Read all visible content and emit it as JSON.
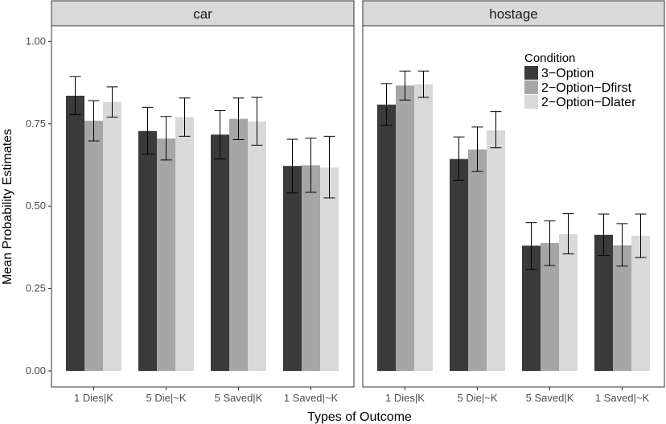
{
  "chart_data": {
    "type": "bar",
    "ylabel": "Mean Probability Estimates",
    "xlabel": "Types of Outcome",
    "ylim": [
      0,
      1.05
    ],
    "yticks": [
      "0.00",
      "0.25",
      "0.50",
      "0.75",
      "1.00"
    ],
    "grid": false,
    "legend": {
      "title": "Condition",
      "placement": "top-right-inside-panel-2",
      "entries": [
        "3−Option",
        "2−Option−Dfirst",
        "2−Option−Dlater"
      ]
    },
    "colors": [
      "#3a3a3a",
      "#a6a6a6",
      "#d9d9d9"
    ],
    "categories": [
      "1 Dies|K",
      "5 Die|~K",
      "5 Saved|K",
      "1 Saved|~K"
    ],
    "panels": [
      {
        "title": "car",
        "series": [
          {
            "name": "3−Option",
            "values": [
              0.835,
              0.728,
              0.717,
              0.622
            ],
            "err_low": [
              0.778,
              0.658,
              0.643,
              0.54
            ],
            "err_high": [
              0.893,
              0.8,
              0.79,
              0.703
            ]
          },
          {
            "name": "2−Option−Dfirst",
            "values": [
              0.759,
              0.705,
              0.765,
              0.624
            ],
            "err_low": [
              0.698,
              0.64,
              0.702,
              0.542
            ],
            "err_high": [
              0.82,
              0.772,
              0.828,
              0.706
            ]
          },
          {
            "name": "2−Option−Dlater",
            "values": [
              0.816,
              0.77,
              0.757,
              0.617
            ],
            "err_low": [
              0.77,
              0.712,
              0.685,
              0.525
            ],
            "err_high": [
              0.862,
              0.828,
              0.83,
              0.712
            ]
          }
        ]
      },
      {
        "title": "hostage",
        "series": [
          {
            "name": "3−Option",
            "values": [
              0.808,
              0.643,
              0.38,
              0.413
            ],
            "err_low": [
              0.745,
              0.578,
              0.308,
              0.35
            ],
            "err_high": [
              0.872,
              0.71,
              0.45,
              0.476
            ]
          },
          {
            "name": "2−Option−Dfirst",
            "values": [
              0.866,
              0.672,
              0.388,
              0.381
            ],
            "err_low": [
              0.822,
              0.605,
              0.32,
              0.318
            ],
            "err_high": [
              0.91,
              0.74,
              0.455,
              0.447
            ]
          },
          {
            "name": "2−Option−Dlater",
            "values": [
              0.87,
              0.73,
              0.415,
              0.41
            ],
            "err_low": [
              0.83,
              0.677,
              0.355,
              0.344
            ],
            "err_high": [
              0.91,
              0.787,
              0.477,
              0.476
            ]
          }
        ]
      }
    ]
  }
}
